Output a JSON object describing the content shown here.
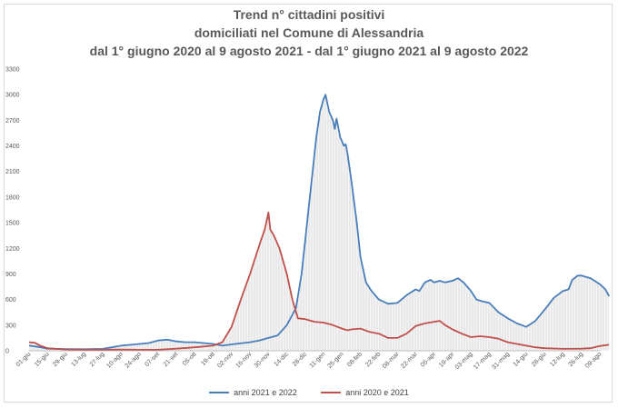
{
  "chart_data": {
    "type": "line",
    "title_lines": [
      "Trend n° cittadini positivi",
      "domiciliati nel Comune di Alessandria",
      "dal 1° giugno 2020 al 9 agosto 2021 - dal 1° giugno 2021 al 9 agosto 2022"
    ],
    "ylim": [
      0,
      3300
    ],
    "yticks": [
      "0",
      "300",
      "600",
      "900",
      "1200",
      "1500",
      "1800",
      "2100",
      "2400",
      "2700",
      "3000",
      "3300"
    ],
    "xticks": [
      "01-giu",
      "15-giu",
      "29-giu",
      "13-lug",
      "27-lug",
      "10-ago",
      "24-ago",
      "07-set",
      "21-set",
      "05-ott",
      "19-ott",
      "02-nov",
      "16-nov",
      "30-nov",
      "14-dic",
      "28-dic",
      "11-gen",
      "25-gen",
      "08-feb",
      "22-feb",
      "08-mar",
      "22-mar",
      "05-apr",
      "19-apr",
      "03-mag",
      "17-mag",
      "31-mag",
      "14-giu",
      "28-giu",
      "12-lug",
      "26-lug",
      "09-ago"
    ],
    "series": [
      {
        "name": "anni 2021 e 2022",
        "color": "#4a7ebb",
        "points": [
          [
            0,
            60
          ],
          [
            0.5,
            45
          ],
          [
            1,
            25
          ],
          [
            2,
            20
          ],
          [
            3,
            18
          ],
          [
            4,
            22
          ],
          [
            5,
            60
          ],
          [
            6,
            80
          ],
          [
            6.5,
            90
          ],
          [
            7,
            120
          ],
          [
            7.5,
            130
          ],
          [
            8,
            110
          ],
          [
            8.5,
            100
          ],
          [
            9,
            100
          ],
          [
            10,
            80
          ],
          [
            10.5,
            60
          ],
          [
            11,
            75
          ],
          [
            12,
            100
          ],
          [
            12.5,
            120
          ],
          [
            13,
            150
          ],
          [
            13.5,
            180
          ],
          [
            14,
            300
          ],
          [
            14.5,
            500
          ],
          [
            14.8,
            900
          ],
          [
            15,
            1300
          ],
          [
            15.2,
            1700
          ],
          [
            15.4,
            2100
          ],
          [
            15.6,
            2500
          ],
          [
            15.8,
            2800
          ],
          [
            16,
            2950
          ],
          [
            16.1,
            3000
          ],
          [
            16.3,
            2800
          ],
          [
            16.5,
            2700
          ],
          [
            16.6,
            2600
          ],
          [
            16.7,
            2720
          ],
          [
            16.9,
            2500
          ],
          [
            17.1,
            2400
          ],
          [
            17.2,
            2420
          ],
          [
            17.3,
            2300
          ],
          [
            17.5,
            2000
          ],
          [
            17.8,
            1500
          ],
          [
            18,
            1100
          ],
          [
            18.3,
            800
          ],
          [
            18.6,
            700
          ],
          [
            19,
            600
          ],
          [
            19.5,
            550
          ],
          [
            20,
            560
          ],
          [
            20.5,
            650
          ],
          [
            21,
            720
          ],
          [
            21.2,
            700
          ],
          [
            21.5,
            800
          ],
          [
            21.8,
            830
          ],
          [
            22,
            800
          ],
          [
            22.3,
            820
          ],
          [
            22.6,
            800
          ],
          [
            23,
            820
          ],
          [
            23.3,
            850
          ],
          [
            23.6,
            800
          ],
          [
            24,
            700
          ],
          [
            24.3,
            600
          ],
          [
            24.6,
            580
          ],
          [
            25,
            560
          ],
          [
            25.5,
            450
          ],
          [
            26,
            380
          ],
          [
            26.5,
            320
          ],
          [
            27,
            280
          ],
          [
            27.5,
            350
          ],
          [
            28,
            480
          ],
          [
            28.5,
            620
          ],
          [
            29,
            700
          ],
          [
            29.3,
            720
          ],
          [
            29.5,
            830
          ],
          [
            29.8,
            880
          ],
          [
            30,
            880
          ],
          [
            30.5,
            850
          ],
          [
            31,
            780
          ],
          [
            31.3,
            720
          ],
          [
            31.5,
            640
          ]
        ]
      },
      {
        "name": "anni 2020 e 2021",
        "color": "#c0504d",
        "points": [
          [
            0,
            100
          ],
          [
            0.3,
            95
          ],
          [
            0.6,
            60
          ],
          [
            1,
            30
          ],
          [
            2,
            15
          ],
          [
            3,
            12
          ],
          [
            4,
            12
          ],
          [
            5,
            15
          ],
          [
            6,
            12
          ],
          [
            7,
            12
          ],
          [
            8,
            25
          ],
          [
            9,
            40
          ],
          [
            10,
            60
          ],
          [
            10.5,
            100
          ],
          [
            11,
            280
          ],
          [
            11.5,
            600
          ],
          [
            12,
            900
          ],
          [
            12.3,
            1100
          ],
          [
            12.6,
            1300
          ],
          [
            12.8,
            1420
          ],
          [
            13,
            1620
          ],
          [
            13.1,
            1420
          ],
          [
            13.3,
            1350
          ],
          [
            13.6,
            1200
          ],
          [
            14,
            900
          ],
          [
            14.3,
            600
          ],
          [
            14.6,
            380
          ],
          [
            15,
            370
          ],
          [
            15.5,
            340
          ],
          [
            16,
            330
          ],
          [
            16.5,
            300
          ],
          [
            17,
            260
          ],
          [
            17.3,
            240
          ],
          [
            17.5,
            250
          ],
          [
            18,
            260
          ],
          [
            18.5,
            220
          ],
          [
            19,
            200
          ],
          [
            19.5,
            150
          ],
          [
            20,
            150
          ],
          [
            20.5,
            200
          ],
          [
            21,
            290
          ],
          [
            21.5,
            320
          ],
          [
            22,
            340
          ],
          [
            22.3,
            350
          ],
          [
            22.6,
            300
          ],
          [
            23,
            250
          ],
          [
            23.5,
            200
          ],
          [
            24,
            160
          ],
          [
            24.5,
            170
          ],
          [
            25,
            160
          ],
          [
            25.5,
            140
          ],
          [
            26,
            100
          ],
          [
            26.5,
            80
          ],
          [
            27,
            60
          ],
          [
            27.5,
            40
          ],
          [
            28,
            30
          ],
          [
            29,
            22
          ],
          [
            30,
            25
          ],
          [
            30.5,
            30
          ],
          [
            31,
            55
          ],
          [
            31.5,
            70
          ]
        ]
      }
    ],
    "legend_position": "bottom",
    "grid": false
  }
}
